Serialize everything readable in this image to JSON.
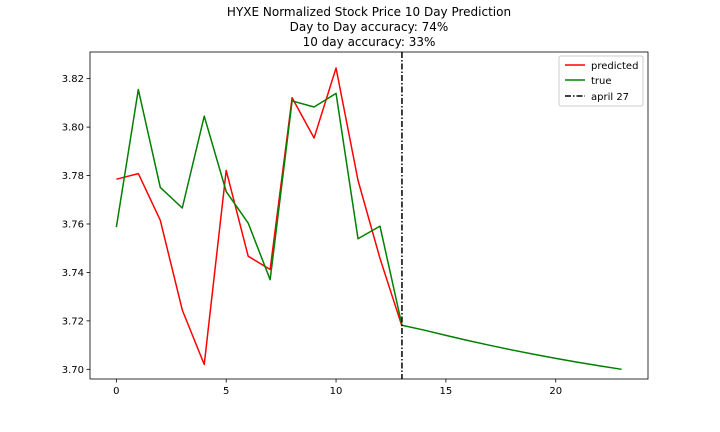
{
  "chart_data": {
    "type": "line",
    "title": "HYXE Normalized Stock Price 10 Day Prediction",
    "subtitle_lines": [
      "Day to Day accuracy: 74%",
      "10 day accuracy: 33%"
    ],
    "xlabel": "",
    "ylabel": "",
    "xlim": [
      -1.2,
      24.2
    ],
    "ylim": [
      3.696,
      3.831
    ],
    "xticks": [
      0,
      5,
      10,
      15,
      20
    ],
    "xtick_labels": [
      "0",
      "5",
      "10",
      "15",
      "20"
    ],
    "yticks": [
      3.7,
      3.72,
      3.74,
      3.76,
      3.78,
      3.8,
      3.82
    ],
    "ytick_labels": [
      "3.70",
      "3.72",
      "3.74",
      "3.76",
      "3.78",
      "3.80",
      "3.82"
    ],
    "grid": false,
    "legend_position": "top-right",
    "series": [
      {
        "name": "predicted",
        "color": "#ff0000",
        "style": "solid",
        "x": [
          0,
          1,
          2,
          3,
          4,
          5,
          6,
          7,
          8,
          9,
          10,
          11,
          12,
          13
        ],
        "y": [
          3.7785,
          3.7808,
          3.7615,
          3.7245,
          3.702,
          3.7821,
          3.7467,
          3.7412,
          3.8121,
          3.7955,
          3.8244,
          3.778,
          3.7458,
          3.7178
        ]
      },
      {
        "name": "true",
        "color": "#008000",
        "style": "solid",
        "x": [
          0,
          1,
          2,
          3,
          4,
          5,
          6,
          7,
          8,
          9,
          10,
          11,
          12,
          13,
          14,
          15,
          16,
          17,
          18,
          19,
          20,
          21,
          22,
          23
        ],
        "y": [
          3.7587,
          3.8155,
          3.7751,
          3.7666,
          3.8045,
          3.7734,
          3.7604,
          3.737,
          3.8108,
          3.8083,
          3.8139,
          3.7539,
          3.7591,
          3.7182,
          3.7162,
          3.714,
          3.7119,
          3.7099,
          3.708,
          3.7062,
          3.7045,
          3.7029,
          3.7014,
          3.7
        ]
      }
    ],
    "vlines": [
      {
        "name": "april 27",
        "x": 13,
        "color": "#000000",
        "style": "dashdot"
      }
    ]
  }
}
